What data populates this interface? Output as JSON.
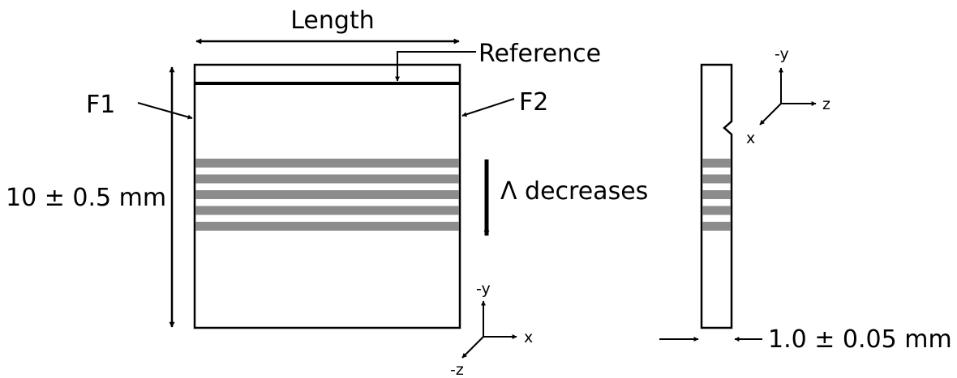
{
  "labels": {
    "length": "Length",
    "reference": "Reference",
    "f1": "F1",
    "f2": "F2",
    "height_dim": "10 ± 0.5 mm",
    "lambda_note": "Λ decreases",
    "thickness_dim": "1.0 ± 0.05 mm"
  },
  "axes_front": {
    "up": "-y",
    "right": "x",
    "out": "-z"
  },
  "axes_side": {
    "up": "-y",
    "right": "z",
    "out": "x"
  },
  "colors": {
    "grating_band": "#8c8c8c",
    "line": "#000000"
  },
  "grating": {
    "band_count": 5
  }
}
